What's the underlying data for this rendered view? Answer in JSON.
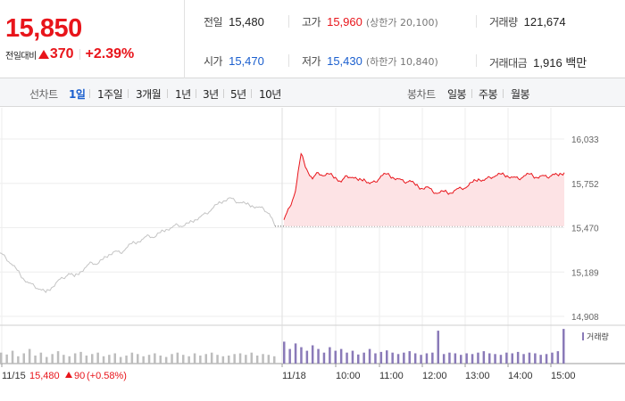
{
  "quote": {
    "price": "15,850",
    "change_label": "전일대비",
    "change_value": "370",
    "change_pct": "+2.39%",
    "up_color": "#e8151b",
    "down_color": "#1b5fce"
  },
  "stats": {
    "prev_close": {
      "label": "전일",
      "value": "15,480"
    },
    "high": {
      "label": "고가",
      "value": "15,960",
      "sub": "(상한가 20,100)"
    },
    "volume": {
      "label": "거래량",
      "value": "121,674"
    },
    "open": {
      "label": "시가",
      "value": "15,470"
    },
    "low": {
      "label": "저가",
      "value": "15,430",
      "sub": "(하한가 10,840)"
    },
    "amount": {
      "label": "거래대금",
      "value": "1,916 백만"
    }
  },
  "toolbar": {
    "line_label": "선차트",
    "line_periods": [
      "1일",
      "1주일",
      "3개월",
      "1년",
      "3년",
      "5년",
      "10년"
    ],
    "active_period": "1일",
    "candle_label": "봉차트",
    "candle_periods": [
      "일봉",
      "주봉",
      "월봉"
    ]
  },
  "chart_data": {
    "type": "line",
    "y_ticks": [
      "16,033",
      "15,752",
      "15,470",
      "15,189",
      "14,908"
    ],
    "ylim": [
      14908,
      16033
    ],
    "prev_close_line": 15480,
    "x_ticks": [
      "11/15",
      "11/18",
      "10:00",
      "11:00",
      "12:00",
      "13:00",
      "14:00",
      "15:00"
    ],
    "prev_day_annotation": {
      "date": "11/15",
      "price": "15,480",
      "change": "90",
      "change_pct": "(+0.58%)"
    },
    "volume_legend": "거래량",
    "series": [
      {
        "day": "11/15",
        "color": "#c4c4c4",
        "points": [
          15310,
          15280,
          15240,
          15200,
          15150,
          15120,
          15100,
          15080,
          15060,
          15090,
          15130,
          15150,
          15180,
          15160,
          15190,
          15220,
          15250,
          15240,
          15270,
          15300,
          15320,
          15310,
          15340,
          15370,
          15380,
          15400,
          15420,
          15410,
          15440,
          15460,
          15470,
          15490,
          15480,
          15500,
          15520,
          15540,
          15560,
          15590,
          15620,
          15640,
          15660,
          15640,
          15630,
          15620,
          15610,
          15600,
          15590,
          15560,
          15480
        ]
      },
      {
        "day": "11/18",
        "color": "#e8151b",
        "fill": "#fde3e5",
        "points": [
          15520,
          15600,
          15700,
          15940,
          15840,
          15780,
          15820,
          15800,
          15810,
          15790,
          15760,
          15800,
          15790,
          15770,
          15780,
          15750,
          15760,
          15800,
          15810,
          15790,
          15780,
          15760,
          15770,
          15740,
          15720,
          15730,
          15700,
          15690,
          15700,
          15690,
          15710,
          15720,
          15730,
          15760,
          15780,
          15770,
          15790,
          15800,
          15810,
          15800,
          15790,
          15780,
          15800,
          15810,
          15790,
          15800,
          15790,
          15810,
          15800,
          15820
        ]
      }
    ],
    "volume": {
      "prev_day_color": "#bdbdbd",
      "today_color": "#8a7ab8",
      "prev_day_values": [
        30,
        25,
        35,
        20,
        28,
        40,
        22,
        30,
        18,
        26,
        34,
        24,
        20,
        28,
        32,
        22,
        26,
        30,
        20,
        24,
        28,
        18,
        22,
        30,
        26,
        20,
        24,
        28,
        22,
        18,
        26,
        30,
        24,
        20,
        28,
        22,
        26,
        30,
        24,
        20,
        22,
        26,
        28,
        24,
        30,
        22,
        26,
        24,
        20
      ],
      "today_values": [
        60,
        40,
        55,
        45,
        35,
        50,
        40,
        30,
        45,
        35,
        40,
        30,
        35,
        25,
        30,
        40,
        28,
        32,
        36,
        30,
        26,
        30,
        34,
        28,
        24,
        28,
        30,
        90,
        26,
        30,
        28,
        24,
        28,
        26,
        30,
        34,
        28,
        26,
        24,
        30,
        28,
        32,
        26,
        30,
        28,
        24,
        26,
        30,
        34,
        95
      ]
    }
  }
}
